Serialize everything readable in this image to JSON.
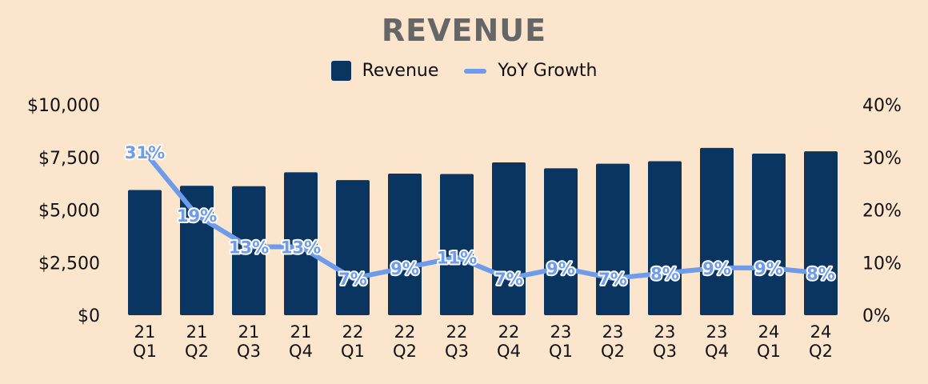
{
  "chart_data": {
    "type": "bar",
    "title": "REVENUE",
    "categories": [
      "21\nQ1",
      "21\nQ2",
      "21\nQ3",
      "21\nQ4",
      "22\nQ1",
      "22\nQ2",
      "22\nQ3",
      "22\nQ4",
      "23\nQ1",
      "23\nQ2",
      "23\nQ3",
      "23\nQ4",
      "24\nQ1",
      "24\nQ2"
    ],
    "series": [
      {
        "name": "Revenue",
        "type": "bar",
        "axis": "left",
        "color": "#0a3561",
        "values": [
          5950,
          6150,
          6130,
          6790,
          6420,
          6730,
          6710,
          7260,
          6980,
          7200,
          7320,
          7950,
          7680,
          7790
        ]
      },
      {
        "name": "YoY Growth",
        "type": "line",
        "axis": "right",
        "color": "#6e9bea",
        "values": [
          31,
          19,
          13,
          13,
          7,
          9,
          11,
          7,
          9,
          7,
          8,
          9,
          9,
          8
        ],
        "labels": [
          "31%",
          "19%",
          "13%",
          "13%",
          "7%",
          "9%",
          "11%",
          "7%",
          "9%",
          "7%",
          "8%",
          "9%",
          "9%",
          "8%"
        ]
      }
    ],
    "y_left": {
      "ylim": [
        0,
        10000
      ],
      "ticks": [
        0,
        2500,
        5000,
        7500,
        10000
      ],
      "tick_labels": [
        "$0",
        "$2,500",
        "$5,000",
        "$7,500",
        "$10,000"
      ]
    },
    "y_right": {
      "ylim": [
        0,
        40
      ],
      "ticks": [
        0,
        10,
        20,
        30,
        40
      ],
      "tick_labels": [
        "0%",
        "10%",
        "20%",
        "30%",
        "40%"
      ]
    },
    "legend_position": "top-center",
    "grid": false
  }
}
